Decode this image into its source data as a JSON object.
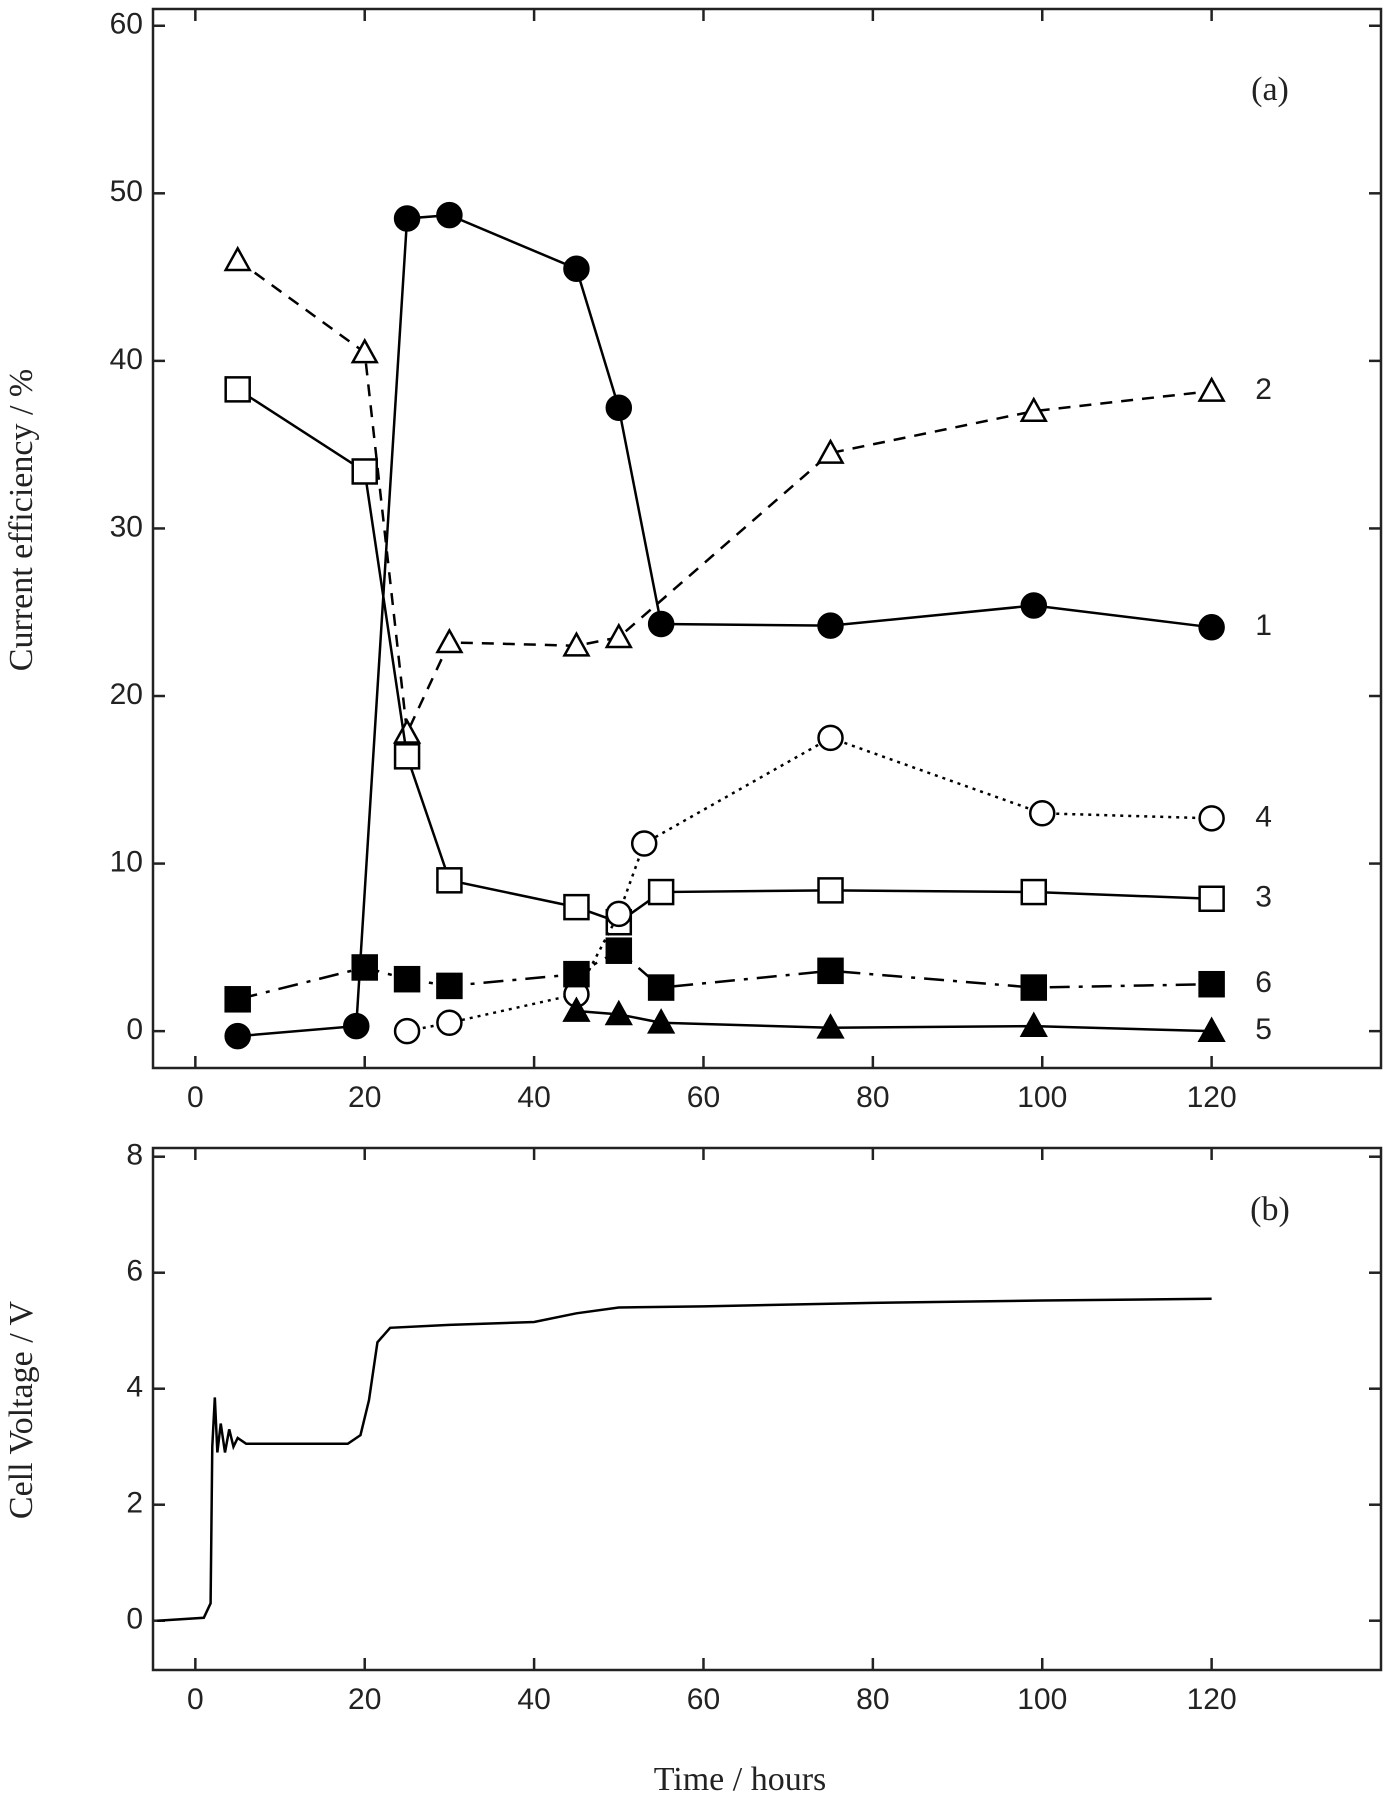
{
  "chart_data": [
    {
      "type": "line",
      "annotation": "(a)",
      "ylabel": "Current efficiency / %",
      "xlim": [
        -5,
        140
      ],
      "xticks": [
        0,
        20,
        40,
        60,
        80,
        100,
        120
      ],
      "ylim": [
        -2.2,
        61
      ],
      "yticks": [
        0,
        10,
        20,
        30,
        40,
        50,
        60
      ],
      "series": [
        {
          "name": "1",
          "color": "#000",
          "marker": "circle-filled",
          "dash": "solid",
          "x": [
            5,
            19,
            25,
            30,
            45,
            50,
            55,
            75,
            99,
            120
          ],
          "values": [
            -0.3,
            0.3,
            48.5,
            48.7,
            45.5,
            37.2,
            24.3,
            24.2,
            25.4,
            24.1
          ]
        },
        {
          "name": "2",
          "color": "#000",
          "marker": "triangle-open",
          "dash": "dashed",
          "x": [
            5,
            20,
            25,
            30,
            45,
            50,
            75,
            99,
            120
          ],
          "values": [
            46,
            40.5,
            17.8,
            23.2,
            23,
            23.5,
            34.5,
            37,
            38.2
          ]
        },
        {
          "name": "3",
          "color": "#000",
          "marker": "square-open",
          "dash": "solid",
          "x": [
            5,
            20,
            25,
            30,
            45,
            50,
            55,
            75,
            99,
            120
          ],
          "values": [
            38.3,
            33.4,
            16.4,
            9,
            7.4,
            6.5,
            8.3,
            8.4,
            8.3,
            7.9
          ]
        },
        {
          "name": "4",
          "color": "#000",
          "marker": "circle-open",
          "dash": "dotted",
          "x": [
            25,
            30,
            45,
            50,
            53,
            75,
            100,
            120
          ],
          "values": [
            0,
            0.5,
            2.2,
            7,
            11.2,
            17.5,
            13,
            12.7
          ]
        },
        {
          "name": "5",
          "color": "#000",
          "marker": "triangle-filled",
          "dash": "solid",
          "x": [
            45,
            50,
            55,
            75,
            99,
            120
          ],
          "values": [
            1.2,
            1,
            0.5,
            0.2,
            0.3,
            0
          ]
        },
        {
          "name": "6",
          "color": "#000",
          "marker": "square-filled",
          "dash": "dashdot",
          "x": [
            5,
            20,
            25,
            30,
            45,
            50,
            55,
            75,
            99,
            120
          ],
          "values": [
            1.9,
            3.8,
            3.1,
            2.7,
            3.4,
            4.8,
            2.6,
            3.6,
            2.6,
            2.8
          ]
        }
      ]
    },
    {
      "type": "line",
      "annotation": "(b)",
      "ylabel": "Cell Voltage / V",
      "xlabel": "Time / hours",
      "xlim": [
        -5,
        140
      ],
      "xticks": [
        0,
        20,
        40,
        60,
        80,
        100,
        120
      ],
      "ylim": [
        -0.85,
        8.15
      ],
      "yticks": [
        0,
        2,
        4,
        6,
        8
      ],
      "series": [
        {
          "color": "#000",
          "marker": "none",
          "dash": "solid",
          "x": [
            -4.5,
            1,
            1.8,
            2,
            2.3,
            2.6,
            3,
            3.5,
            4,
            4.5,
            5,
            6,
            18,
            19.5,
            20.5,
            21.5,
            23,
            30,
            40,
            45,
            50,
            60,
            80,
            100,
            120
          ],
          "values": [
            0,
            0.05,
            0.3,
            3,
            3.85,
            2.9,
            3.4,
            2.9,
            3.3,
            3,
            3.15,
            3.05,
            3.05,
            3.2,
            3.8,
            4.8,
            5.05,
            5.1,
            5.15,
            5.3,
            5.4,
            5.42,
            5.48,
            5.52,
            5.55
          ]
        }
      ]
    }
  ]
}
